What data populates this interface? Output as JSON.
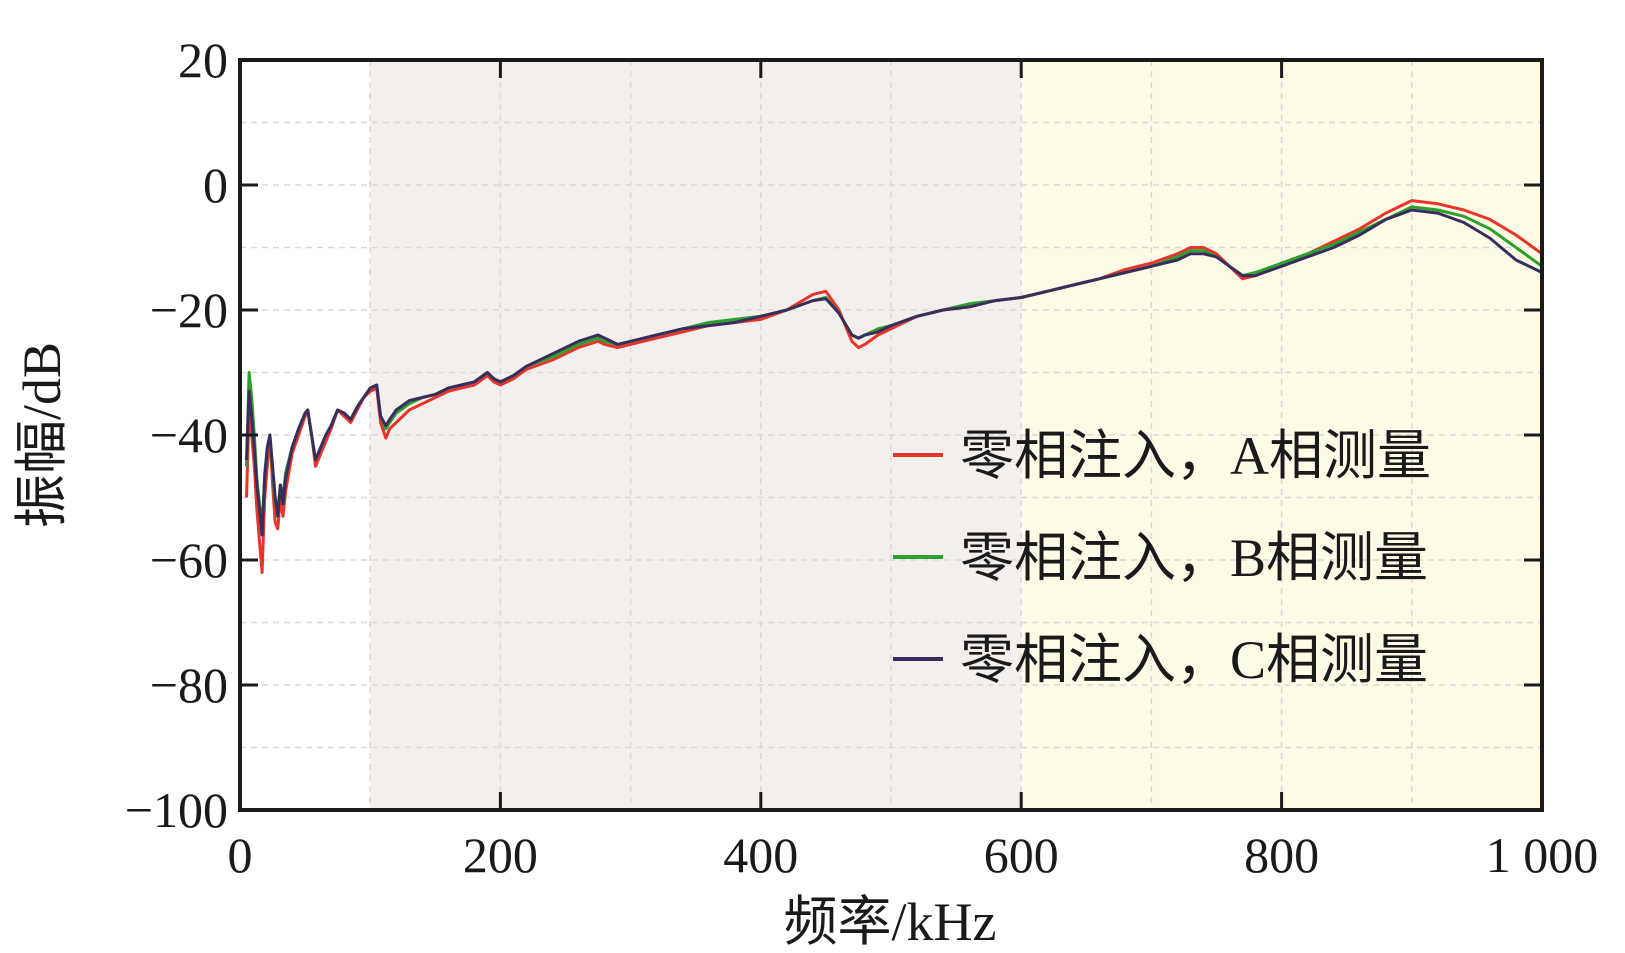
{
  "chart_data": {
    "type": "line",
    "title": "",
    "xlabel": "频率/kHz",
    "ylabel": "振幅/dB",
    "xlim": [
      0,
      1000
    ],
    "ylim": [
      -100,
      20
    ],
    "x_ticks": [
      0,
      200,
      400,
      600,
      800,
      1000
    ],
    "x_tick_labels": [
      "0",
      "200",
      "400",
      "600",
      "800",
      "1 000"
    ],
    "y_ticks": [
      -100,
      -80,
      -60,
      -40,
      -20,
      0,
      20
    ],
    "y_tick_labels": [
      "−100",
      "−80",
      "−60",
      "−40",
      "−20",
      "0",
      "20"
    ],
    "grid": true,
    "legend_position": "right",
    "bands": [
      {
        "x0": 100,
        "x1": 600,
        "color": "#f3efed"
      },
      {
        "x0": 600,
        "x1": 1000,
        "color": "#fdfbe6"
      }
    ],
    "series": [
      {
        "name": "零相注入，A相测量",
        "color": "#e8352b",
        "points": [
          [
            5,
            -50
          ],
          [
            7,
            -36
          ],
          [
            9,
            -40
          ],
          [
            11,
            -45
          ],
          [
            13,
            -52
          ],
          [
            15,
            -57
          ],
          [
            17,
            -62
          ],
          [
            19,
            -50
          ],
          [
            21,
            -45
          ],
          [
            23,
            -40
          ],
          [
            25,
            -48
          ],
          [
            27,
            -54
          ],
          [
            29,
            -55
          ],
          [
            31,
            -50
          ],
          [
            33,
            -53
          ],
          [
            35,
            -49
          ],
          [
            40,
            -43
          ],
          [
            45,
            -40
          ],
          [
            50,
            -37
          ],
          [
            52,
            -36
          ],
          [
            55,
            -40
          ],
          [
            58,
            -45
          ],
          [
            62,
            -43
          ],
          [
            66,
            -41
          ],
          [
            70,
            -39
          ],
          [
            75,
            -36
          ],
          [
            80,
            -37
          ],
          [
            85,
            -38
          ],
          [
            90,
            -36
          ],
          [
            95,
            -34
          ],
          [
            100,
            -33
          ],
          [
            105,
            -32.5
          ],
          [
            108,
            -38
          ],
          [
            112,
            -40.5
          ],
          [
            115,
            -39
          ],
          [
            120,
            -38
          ],
          [
            130,
            -36
          ],
          [
            140,
            -35
          ],
          [
            150,
            -34
          ],
          [
            160,
            -33
          ],
          [
            170,
            -32.5
          ],
          [
            180,
            -32
          ],
          [
            190,
            -30.5
          ],
          [
            195,
            -31.5
          ],
          [
            200,
            -32
          ],
          [
            210,
            -31
          ],
          [
            220,
            -29.5
          ],
          [
            240,
            -28
          ],
          [
            260,
            -26
          ],
          [
            275,
            -25
          ],
          [
            280,
            -25.5
          ],
          [
            290,
            -26
          ],
          [
            300,
            -25.5
          ],
          [
            320,
            -24.5
          ],
          [
            340,
            -23.5
          ],
          [
            360,
            -22.5
          ],
          [
            380,
            -22
          ],
          [
            400,
            -21.5
          ],
          [
            420,
            -20
          ],
          [
            440,
            -17.5
          ],
          [
            450,
            -17
          ],
          [
            460,
            -20
          ],
          [
            470,
            -25
          ],
          [
            475,
            -26
          ],
          [
            480,
            -25.5
          ],
          [
            490,
            -24
          ],
          [
            500,
            -23
          ],
          [
            520,
            -21
          ],
          [
            540,
            -20
          ],
          [
            560,
            -19.5
          ],
          [
            580,
            -18.5
          ],
          [
            600,
            -18
          ],
          [
            620,
            -17
          ],
          [
            640,
            -16
          ],
          [
            660,
            -15
          ],
          [
            680,
            -13.5
          ],
          [
            700,
            -12.5
          ],
          [
            720,
            -11
          ],
          [
            730,
            -10
          ],
          [
            740,
            -10
          ],
          [
            750,
            -11
          ],
          [
            760,
            -13
          ],
          [
            770,
            -15
          ],
          [
            780,
            -14.5
          ],
          [
            800,
            -12.5
          ],
          [
            820,
            -11
          ],
          [
            840,
            -9
          ],
          [
            860,
            -7
          ],
          [
            880,
            -4.5
          ],
          [
            900,
            -2.5
          ],
          [
            920,
            -3
          ],
          [
            940,
            -4
          ],
          [
            960,
            -5.5
          ],
          [
            980,
            -8
          ],
          [
            1000,
            -11
          ]
        ]
      },
      {
        "name": "零相注入，B相测量",
        "color": "#2ca02c",
        "points": [
          [
            5,
            -45
          ],
          [
            7,
            -30
          ],
          [
            9,
            -34
          ],
          [
            11,
            -40
          ],
          [
            13,
            -47
          ],
          [
            15,
            -51
          ],
          [
            17,
            -55
          ],
          [
            19,
            -46
          ],
          [
            21,
            -42
          ],
          [
            23,
            -40
          ],
          [
            25,
            -46
          ],
          [
            27,
            -51
          ],
          [
            29,
            -52
          ],
          [
            31,
            -48
          ],
          [
            33,
            -50
          ],
          [
            35,
            -46
          ],
          [
            40,
            -42
          ],
          [
            45,
            -39
          ],
          [
            50,
            -36.5
          ],
          [
            52,
            -36
          ],
          [
            55,
            -40
          ],
          [
            58,
            -44
          ],
          [
            62,
            -42
          ],
          [
            66,
            -40
          ],
          [
            70,
            -38.5
          ],
          [
            75,
            -36
          ],
          [
            80,
            -36.5
          ],
          [
            85,
            -37.5
          ],
          [
            90,
            -35.5
          ],
          [
            95,
            -34
          ],
          [
            100,
            -32.5
          ],
          [
            105,
            -32
          ],
          [
            108,
            -37
          ],
          [
            112,
            -39
          ],
          [
            115,
            -38
          ],
          [
            120,
            -36.5
          ],
          [
            130,
            -35
          ],
          [
            140,
            -34
          ],
          [
            150,
            -33.5
          ],
          [
            160,
            -32.5
          ],
          [
            170,
            -32
          ],
          [
            180,
            -31.5
          ],
          [
            190,
            -30
          ],
          [
            195,
            -31
          ],
          [
            200,
            -31.5
          ],
          [
            210,
            -30.5
          ],
          [
            220,
            -29
          ],
          [
            240,
            -27.5
          ],
          [
            260,
            -25.5
          ],
          [
            275,
            -24.5
          ],
          [
            280,
            -25
          ],
          [
            290,
            -25.5
          ],
          [
            300,
            -25
          ],
          [
            320,
            -24
          ],
          [
            340,
            -23
          ],
          [
            360,
            -22
          ],
          [
            380,
            -21.5
          ],
          [
            400,
            -21
          ],
          [
            420,
            -20
          ],
          [
            440,
            -18.5
          ],
          [
            450,
            -18
          ],
          [
            460,
            -20.5
          ],
          [
            470,
            -24
          ],
          [
            475,
            -24.5
          ],
          [
            480,
            -24
          ],
          [
            490,
            -23
          ],
          [
            500,
            -22.5
          ],
          [
            520,
            -21
          ],
          [
            540,
            -20
          ],
          [
            560,
            -19
          ],
          [
            580,
            -18.5
          ],
          [
            600,
            -18
          ],
          [
            620,
            -17
          ],
          [
            640,
            -16
          ],
          [
            660,
            -15
          ],
          [
            680,
            -14
          ],
          [
            700,
            -13
          ],
          [
            720,
            -11.5
          ],
          [
            730,
            -10.5
          ],
          [
            740,
            -10.5
          ],
          [
            750,
            -11.5
          ],
          [
            760,
            -13
          ],
          [
            770,
            -14.5
          ],
          [
            780,
            -14
          ],
          [
            800,
            -12.5
          ],
          [
            820,
            -11
          ],
          [
            840,
            -9.5
          ],
          [
            860,
            -7.5
          ],
          [
            880,
            -5.5
          ],
          [
            900,
            -3.5
          ],
          [
            920,
            -4
          ],
          [
            940,
            -5
          ],
          [
            960,
            -7
          ],
          [
            980,
            -10
          ],
          [
            1000,
            -13
          ]
        ]
      },
      {
        "name": "零相注入，C相测量",
        "color": "#3a2d5e",
        "points": [
          [
            5,
            -44
          ],
          [
            7,
            -33
          ],
          [
            9,
            -37
          ],
          [
            11,
            -42
          ],
          [
            13,
            -48
          ],
          [
            15,
            -52
          ],
          [
            17,
            -56
          ],
          [
            19,
            -47
          ],
          [
            21,
            -42
          ],
          [
            23,
            -40
          ],
          [
            25,
            -45
          ],
          [
            27,
            -50
          ],
          [
            29,
            -53
          ],
          [
            31,
            -48
          ],
          [
            33,
            -51
          ],
          [
            35,
            -47
          ],
          [
            40,
            -42
          ],
          [
            45,
            -39
          ],
          [
            50,
            -36.5
          ],
          [
            52,
            -36
          ],
          [
            55,
            -40
          ],
          [
            58,
            -44
          ],
          [
            62,
            -42
          ],
          [
            66,
            -40
          ],
          [
            70,
            -38.5
          ],
          [
            75,
            -36
          ],
          [
            80,
            -36.5
          ],
          [
            85,
            -37.5
          ],
          [
            90,
            -35.5
          ],
          [
            95,
            -34
          ],
          [
            100,
            -32.5
          ],
          [
            105,
            -32
          ],
          [
            108,
            -37
          ],
          [
            112,
            -38.5
          ],
          [
            115,
            -37.5
          ],
          [
            120,
            -36
          ],
          [
            130,
            -34.5
          ],
          [
            140,
            -34
          ],
          [
            150,
            -33.5
          ],
          [
            160,
            -32.5
          ],
          [
            170,
            -32
          ],
          [
            180,
            -31.5
          ],
          [
            190,
            -30
          ],
          [
            195,
            -31
          ],
          [
            200,
            -31.5
          ],
          [
            210,
            -30.5
          ],
          [
            220,
            -29
          ],
          [
            240,
            -27
          ],
          [
            260,
            -25
          ],
          [
            275,
            -24
          ],
          [
            280,
            -24.5
          ],
          [
            290,
            -25.5
          ],
          [
            300,
            -25
          ],
          [
            320,
            -24
          ],
          [
            340,
            -23
          ],
          [
            360,
            -22.5
          ],
          [
            380,
            -22
          ],
          [
            400,
            -21
          ],
          [
            420,
            -20
          ],
          [
            440,
            -18.5
          ],
          [
            450,
            -18.2
          ],
          [
            460,
            -20.5
          ],
          [
            470,
            -24
          ],
          [
            475,
            -24.5
          ],
          [
            480,
            -24
          ],
          [
            490,
            -23.5
          ],
          [
            500,
            -22.5
          ],
          [
            520,
            -21
          ],
          [
            540,
            -20
          ],
          [
            560,
            -19.5
          ],
          [
            580,
            -18.5
          ],
          [
            600,
            -18
          ],
          [
            620,
            -17
          ],
          [
            640,
            -16
          ],
          [
            660,
            -15
          ],
          [
            680,
            -14
          ],
          [
            700,
            -13
          ],
          [
            720,
            -12
          ],
          [
            730,
            -11
          ],
          [
            740,
            -11
          ],
          [
            750,
            -11.5
          ],
          [
            760,
            -13
          ],
          [
            770,
            -14.5
          ],
          [
            780,
            -14.5
          ],
          [
            800,
            -13
          ],
          [
            820,
            -11.5
          ],
          [
            840,
            -10
          ],
          [
            860,
            -8
          ],
          [
            880,
            -5.5
          ],
          [
            900,
            -4
          ],
          [
            920,
            -4.5
          ],
          [
            940,
            -6
          ],
          [
            960,
            -8.5
          ],
          [
            980,
            -12
          ],
          [
            1000,
            -14
          ]
        ]
      }
    ]
  }
}
